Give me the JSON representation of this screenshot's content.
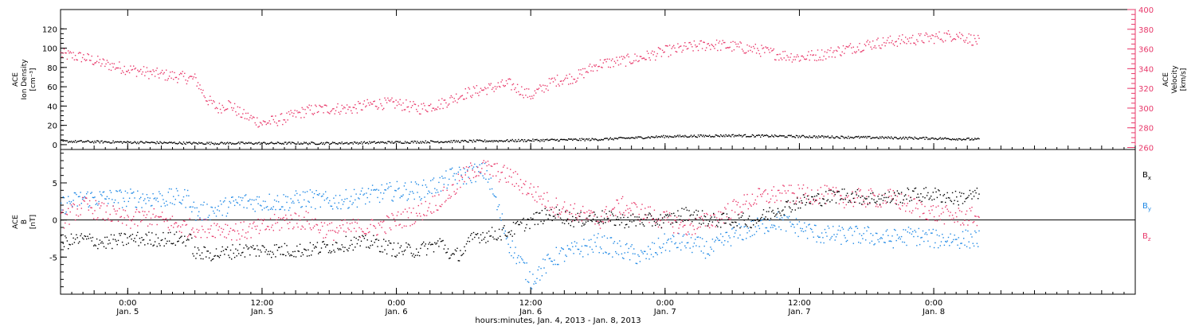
{
  "chart_data": [
    {
      "type": "scatter",
      "panel": "top",
      "left_axis_label": [
        "ACE",
        "Ion Density",
        "[cm⁻³]"
      ],
      "right_axis_label": [
        "ACE",
        "Velocity",
        "[km/s]"
      ],
      "left_ylim": [
        -5,
        140
      ],
      "left_yticks": [
        0,
        20,
        40,
        60,
        80,
        100,
        120
      ],
      "right_ylim": [
        258,
        400
      ],
      "right_yticks": [
        260,
        280,
        300,
        320,
        340,
        360,
        380,
        400
      ],
      "right_axis_color": "#e8386a",
      "series": [
        {
          "axis": "left",
          "color": "#000000",
          "x_hours": [
            0,
            6,
            12,
            18,
            24,
            30,
            36,
            42,
            48,
            54,
            60,
            66,
            72,
            78,
            82
          ],
          "values": [
            4,
            3,
            2,
            2,
            2,
            3,
            4,
            5,
            6,
            9,
            10,
            9,
            8,
            7,
            6
          ]
        },
        {
          "axis": "right",
          "color": "#e8386a",
          "x_hours": [
            0,
            2,
            4,
            6,
            8,
            10,
            12,
            13,
            14,
            15,
            16,
            18,
            20,
            22,
            24,
            26,
            28,
            30,
            32,
            34,
            36,
            38,
            40,
            42,
            44,
            46,
            48,
            50,
            52,
            54,
            56,
            58,
            60,
            62,
            64,
            66,
            68,
            70,
            72,
            74,
            76,
            78,
            80,
            82
          ],
          "values": [
            355,
            352,
            345,
            340,
            336,
            333,
            330,
            310,
            300,
            305,
            295,
            285,
            290,
            298,
            300,
            300,
            305,
            305,
            300,
            305,
            315,
            320,
            325,
            313,
            328,
            332,
            345,
            348,
            352,
            358,
            362,
            365,
            363,
            360,
            355,
            352,
            355,
            360,
            365,
            368,
            370,
            372,
            375,
            368
          ]
        }
      ]
    },
    {
      "type": "scatter",
      "panel": "bottom",
      "left_axis_label": [
        "ACE",
        "B",
        "[nT]"
      ],
      "ylim": [
        -10,
        9.5
      ],
      "yticks": [
        -5,
        0,
        5
      ],
      "zero_line": true,
      "series": [
        {
          "name": "Bx",
          "color": "#000000",
          "x_hours": [
            0,
            2,
            4,
            6,
            8,
            10,
            11.5,
            12,
            14,
            16,
            18,
            20,
            22,
            24,
            26,
            28,
            30,
            32,
            34,
            35,
            36,
            37,
            38,
            40,
            42,
            44,
            46,
            48,
            50,
            52,
            54,
            56,
            58,
            60,
            62,
            64,
            66,
            68,
            70,
            72,
            74,
            76,
            78,
            80,
            82
          ],
          "values": [
            -3,
            -2.5,
            -3,
            -2.5,
            -2.5,
            -2.5,
            -2.5,
            -4.5,
            -4.5,
            -4,
            -4,
            -4,
            -4,
            -3.5,
            -3,
            -3,
            -4,
            -4,
            -3,
            -5,
            -4,
            -2,
            -2,
            -1.5,
            0,
            1,
            0,
            0.5,
            0,
            0,
            0,
            1,
            0,
            0,
            0,
            1.5,
            2.5,
            3,
            3.5,
            3,
            3,
            3.5,
            3.5,
            3,
            3.5
          ]
        },
        {
          "name": "By",
          "color": "#1e88e5",
          "x_hours": [
            0,
            2,
            4,
            6,
            8,
            10,
            11.5,
            12,
            14,
            16,
            18,
            20,
            22,
            24,
            26,
            28,
            30,
            32,
            34,
            35,
            36,
            37,
            38,
            40,
            42,
            44,
            46,
            48,
            50,
            52,
            54,
            56,
            58,
            60,
            62,
            64,
            66,
            68,
            70,
            72,
            74,
            76,
            78,
            80,
            82
          ],
          "values": [
            2,
            3,
            3,
            3,
            3,
            3,
            3,
            1,
            1.5,
            2.5,
            2.5,
            2.5,
            3,
            2.5,
            3,
            3.5,
            4,
            4,
            5,
            6,
            6,
            6.5,
            6.5,
            -3,
            -8,
            -5,
            -4,
            -3,
            -4,
            -5,
            -3,
            -3,
            -4,
            -2,
            -1,
            0,
            -1,
            -2,
            -2,
            -2,
            -2.5,
            -2,
            -2.5,
            -2.5,
            -2.5
          ]
        },
        {
          "name": "Bz",
          "color": "#e8386a",
          "x_hours": [
            0,
            2,
            4,
            6,
            8,
            10,
            11.5,
            12,
            14,
            16,
            18,
            20,
            22,
            24,
            26,
            28,
            30,
            32,
            34,
            35,
            36,
            37,
            38,
            40,
            42,
            44,
            46,
            48,
            50,
            52,
            54,
            56,
            58,
            60,
            62,
            64,
            66,
            68,
            70,
            72,
            74,
            76,
            78,
            80,
            82
          ],
          "values": [
            0,
            2,
            1,
            0,
            0.5,
            -0.5,
            -1,
            -1,
            -1,
            -1.5,
            -1,
            0,
            0,
            -1.5,
            -1,
            -1,
            0,
            1,
            3,
            4,
            6,
            7,
            7,
            6,
            4,
            2,
            1,
            0,
            2,
            1,
            0,
            -1,
            0,
            1.5,
            3,
            3.5,
            3.5,
            3.5,
            3,
            3,
            3,
            2,
            1,
            0.5,
            0.5
          ]
        }
      ]
    }
  ],
  "x_axis": {
    "xlim_hours": [
      0,
      96
    ],
    "xlabel": "hours:minutes, Jan. 4, 2013 - Jan. 8, 2013",
    "ticks": [
      {
        "t": 6,
        "time": "0:00",
        "date": "Jan. 5"
      },
      {
        "t": 18,
        "time": "12:00",
        "date": "Jan. 5"
      },
      {
        "t": 30,
        "time": "0:00",
        "date": "Jan. 6"
      },
      {
        "t": 42,
        "time": "12:00",
        "date": "Jan. 6"
      },
      {
        "t": 54,
        "time": "0:00",
        "date": "Jan. 7"
      },
      {
        "t": 66,
        "time": "12:00",
        "date": "Jan. 7"
      },
      {
        "t": 78,
        "time": "0:00",
        "date": "Jan. 8"
      }
    ]
  }
}
